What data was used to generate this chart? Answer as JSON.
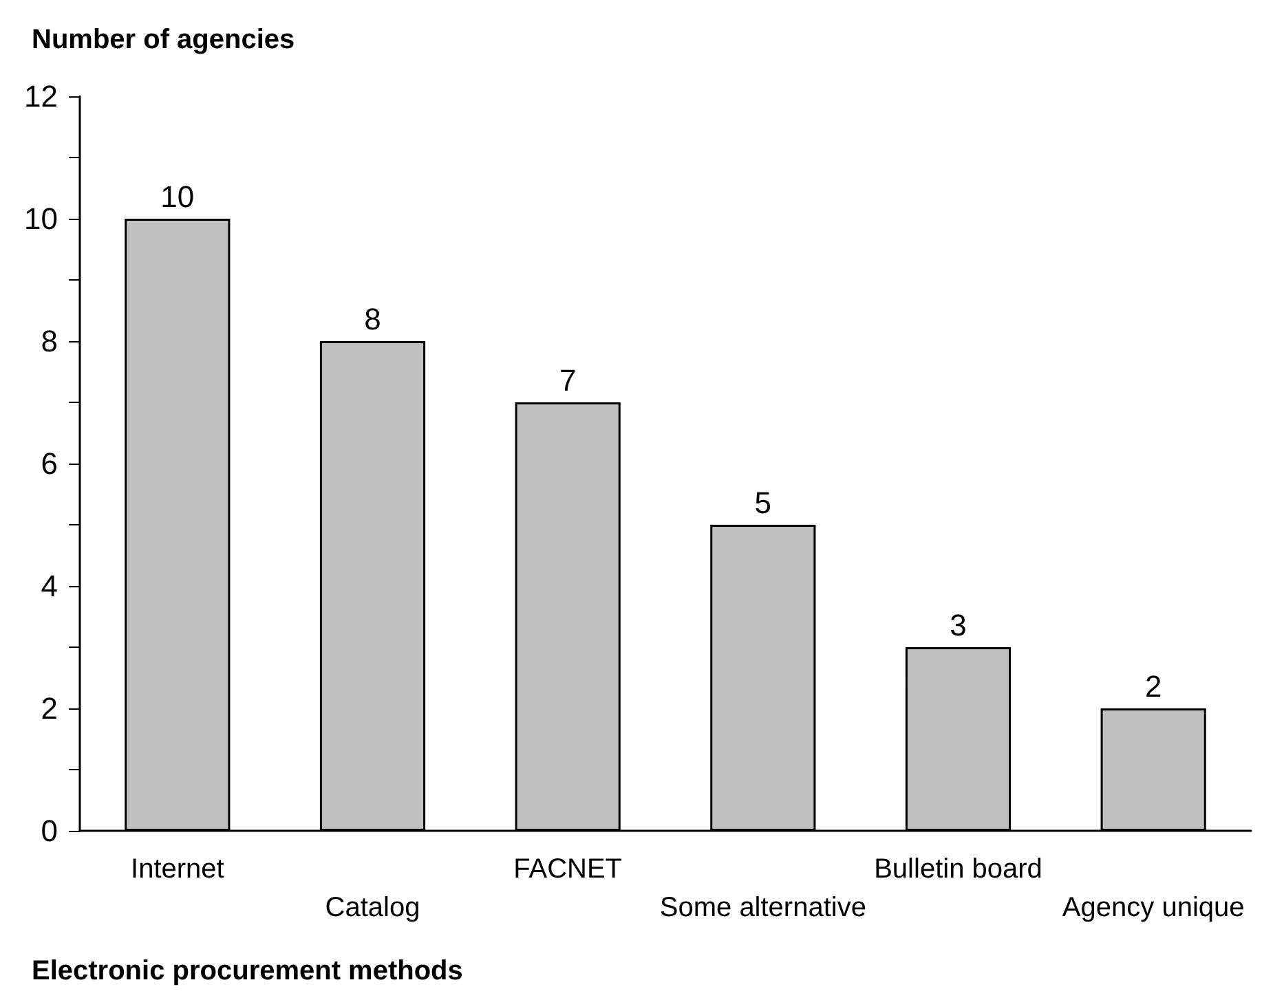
{
  "chart_data": {
    "type": "bar",
    "ylabel": "Number of agencies",
    "xlabel": "Electronic procurement methods",
    "categories": [
      "Internet",
      "Catalog",
      "FACNET",
      "Some alternative",
      "Bulletin board",
      "Agency unique"
    ],
    "values": [
      10,
      8,
      7,
      5,
      3,
      2
    ],
    "color": "#c0c0c0",
    "data_labels": true,
    "grid": false,
    "ylim": [
      0,
      12
    ],
    "yticks": [
      0,
      {
        "value": 1,
        "label": null
      },
      2,
      {
        "value": 3,
        "label": null
      },
      4,
      {
        "value": 5,
        "label": null
      },
      6,
      {
        "value": 7,
        "label": null
      },
      8,
      {
        "value": 9,
        "label": null
      },
      10,
      {
        "value": 11,
        "label": null
      },
      12
    ]
  }
}
